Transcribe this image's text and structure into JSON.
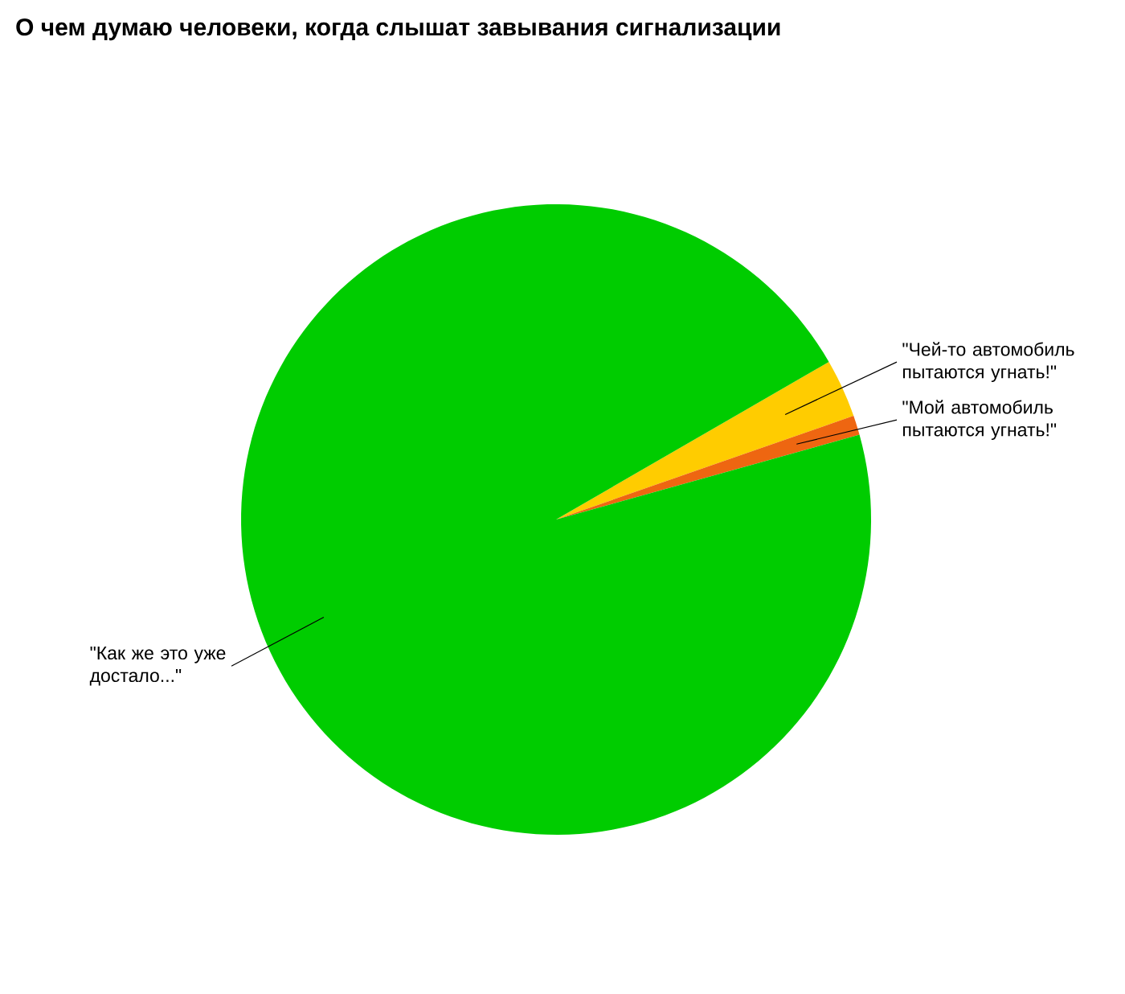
{
  "chart_data": {
    "type": "pie",
    "title": "О чем думаю человеки, когда слышат завывания сигнализации",
    "categories": [
      "\"Чей-то автомобиль пытаются угнать!\"",
      "\"Мой автомобиль пытаются угнать!\"",
      "\"Как же это уже достало...\""
    ],
    "values": [
      3,
      1,
      96
    ],
    "colors": [
      "#ffcc00",
      "#ee6611",
      "#00cc00"
    ]
  }
}
